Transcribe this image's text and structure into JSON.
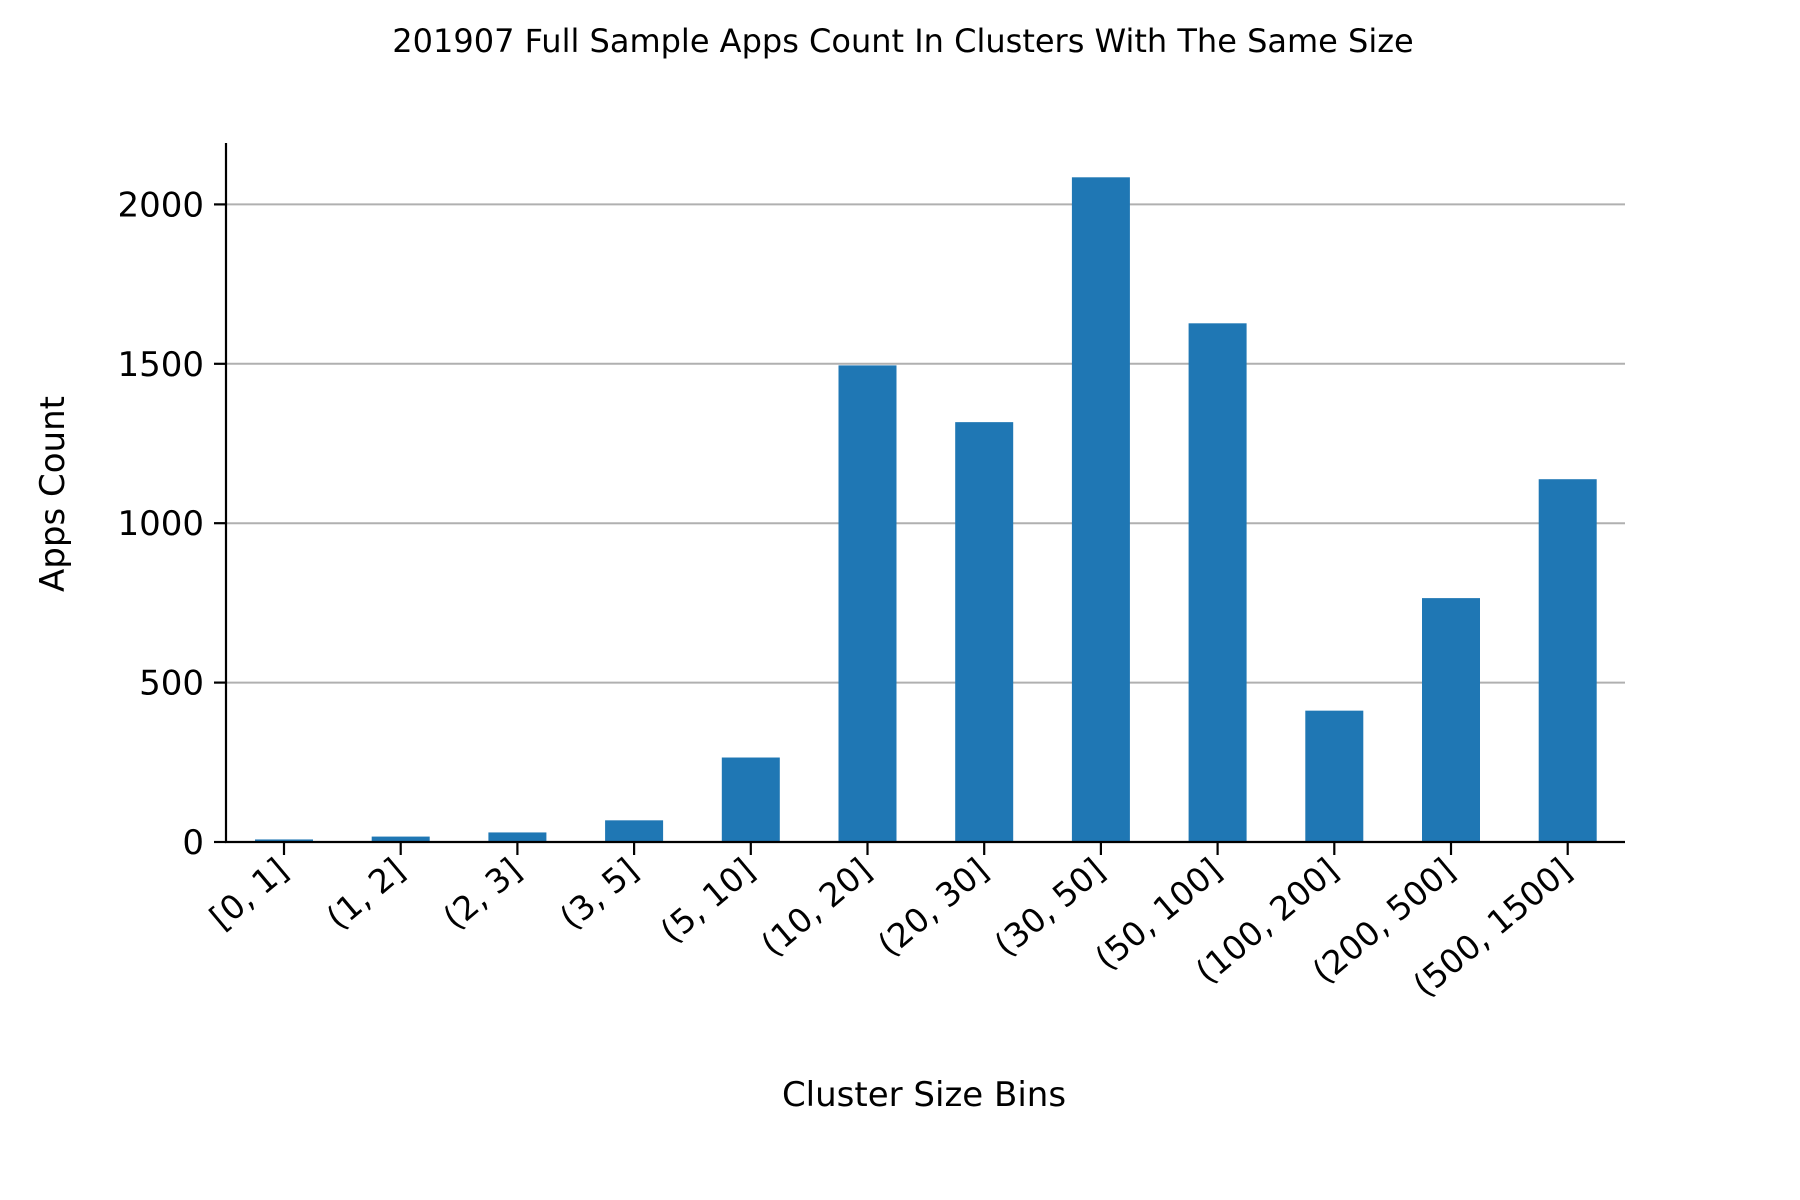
{
  "chart_data": {
    "type": "bar",
    "title": "201907 Full Sample Apps Count In Clusters With The Same Size",
    "xlabel": "Cluster Size Bins",
    "ylabel": "Apps Count",
    "categories": [
      "[0, 1]",
      "(1, 2]",
      "(2, 3]",
      "(3, 5]",
      "(5, 10]",
      "(10, 20]",
      "(20, 30]",
      "(30, 50]",
      "(50, 100]",
      "(100, 200]",
      "(200, 500]",
      "(500, 1500]"
    ],
    "values": [
      8,
      17,
      30,
      68,
      265,
      1495,
      1317,
      2085,
      1627,
      412,
      765,
      1138
    ],
    "ylim": [
      0,
      2200
    ],
    "yticks": [
      0,
      500,
      1000,
      1500,
      2000
    ],
    "grid": "y",
    "color": "#1f77b4"
  }
}
